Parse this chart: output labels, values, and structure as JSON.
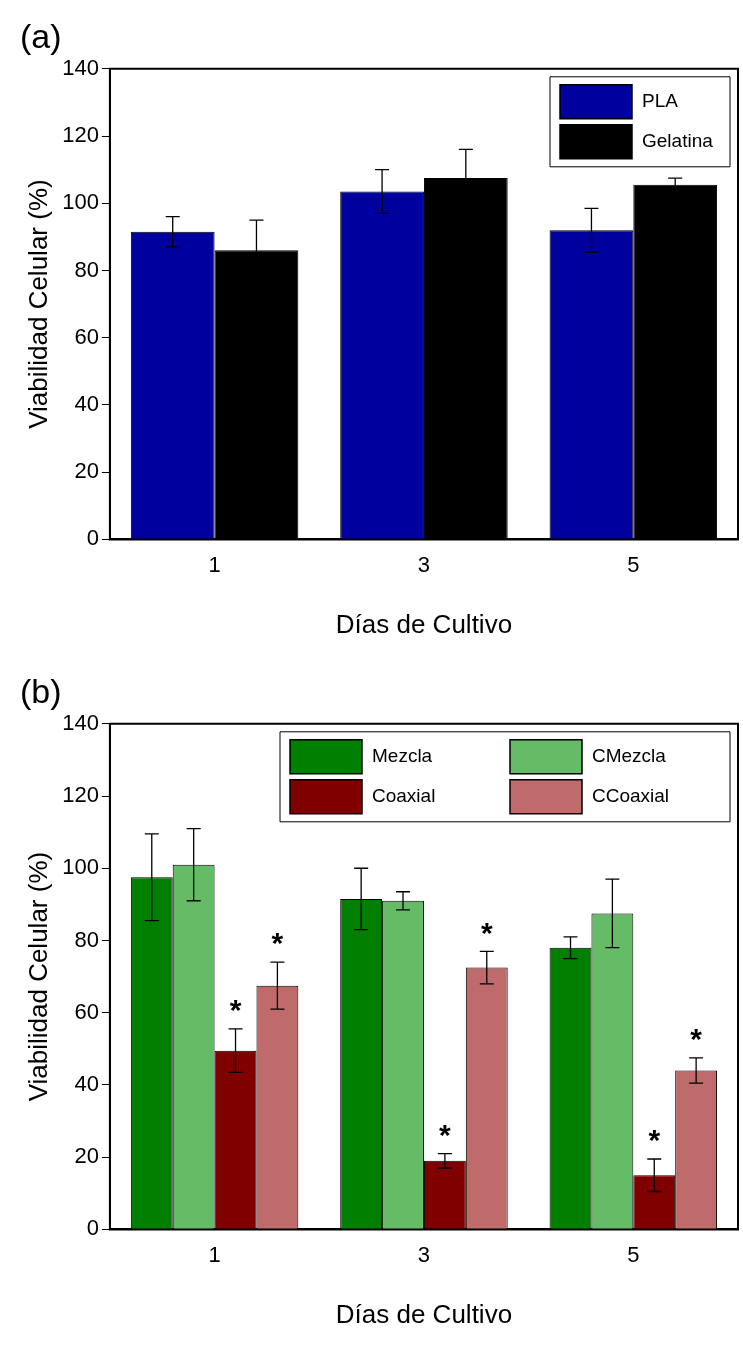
{
  "chart_data": [
    {
      "type": "bar",
      "title": "(a)",
      "xlabel": "Días de Cultivo",
      "ylabel": "Viabilidad Celular (%)",
      "categories": [
        "1",
        "3",
        "5"
      ],
      "series": [
        {
          "name": "PLA",
          "color": "#00009f",
          "values": [
            91.5,
            103.5,
            92
          ],
          "errors": [
            4.5,
            6.5,
            6.5
          ]
        },
        {
          "name": "Gelatina",
          "color": "#000000",
          "values": [
            86,
            107.5,
            105.5
          ],
          "errors": [
            9,
            8.5,
            2
          ]
        }
      ],
      "ylim": [
        0,
        140
      ],
      "yticks": [
        0,
        20,
        40,
        60,
        80,
        100,
        120,
        140
      ],
      "grid": false,
      "legend": "top right"
    },
    {
      "type": "bar",
      "title": "(b)",
      "xlabel": "Días de Cultivo",
      "ylabel": "Viabilidad Celular (%)",
      "categories": [
        "1",
        "3",
        "5"
      ],
      "series": [
        {
          "name": "Mezcla",
          "color": "#007f00",
          "values": [
            97.5,
            91.5,
            78
          ],
          "errors": [
            12,
            8.5,
            3
          ]
        },
        {
          "name": "CMezcla",
          "color": "#66bb66",
          "values": [
            101,
            91,
            87.5
          ],
          "errors": [
            10,
            2.5,
            9.5
          ]
        },
        {
          "name": "Coaxial",
          "color": "#800000",
          "values": [
            49.5,
            19,
            15
          ],
          "errors": [
            6,
            2,
            4.5
          ]
        },
        {
          "name": "CCoaxial",
          "color": "#c06b6b",
          "values": [
            67.5,
            72.5,
            44
          ],
          "errors": [
            6.5,
            4.5,
            3.5
          ]
        }
      ],
      "annotations": [
        {
          "text": "*",
          "x": "1",
          "y": 55.5
        },
        {
          "text": "*",
          "x": "1",
          "y": 74
        },
        {
          "text": "*",
          "x": "3",
          "y": 21
        },
        {
          "text": "*",
          "x": "3",
          "y": 77
        },
        {
          "text": "*",
          "x": "5",
          "y": 19.5
        },
        {
          "text": "*",
          "x": "5",
          "y": 47.5
        }
      ],
      "ylim": [
        0,
        140
      ],
      "yticks": [
        0,
        20,
        40,
        60,
        80,
        100,
        120,
        140
      ],
      "grid": false,
      "legend": "top right"
    }
  ]
}
